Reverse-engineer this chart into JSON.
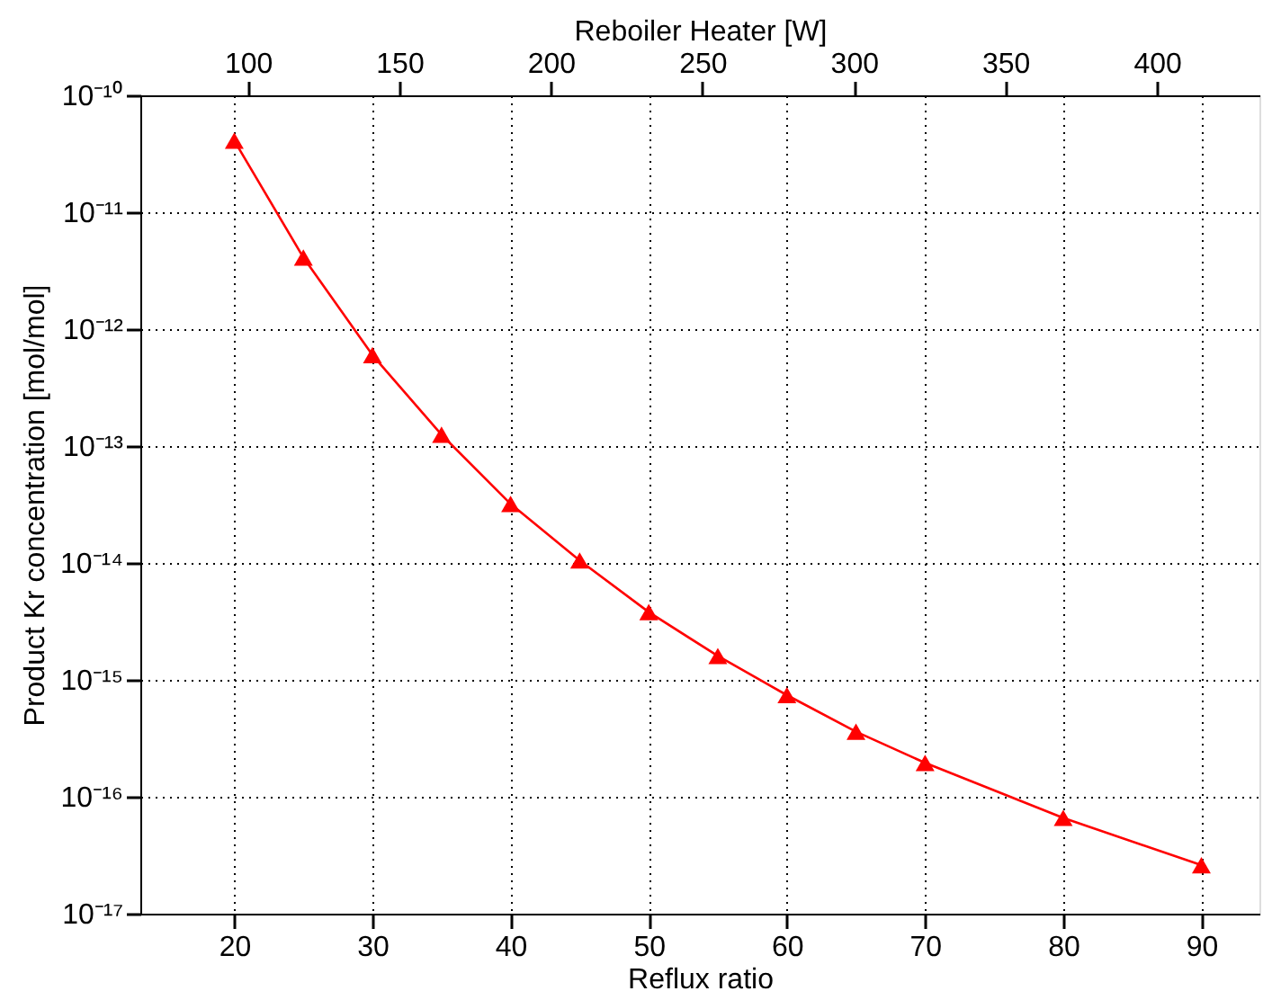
{
  "chart_data": {
    "type": "line",
    "xlabel": "Reflux ratio",
    "ylabel": "Product Kr concentration [mol/mol]",
    "x2label": "Reboiler Heater [W]",
    "x": [
      20,
      25,
      30,
      35,
      40,
      45,
      50,
      55,
      60,
      65,
      70,
      80,
      90
    ],
    "series": [
      {
        "color": "#ff0000",
        "values": [
          4.1e-11,
          4.1e-12,
          6e-13,
          1.25e-13,
          3.2e-14,
          1.05e-14,
          3.8e-15,
          1.6e-15,
          7.4e-16,
          3.6e-16,
          1.95e-16,
          6.6e-17,
          2.6e-17
        ]
      }
    ],
    "xlim": [
      13.2,
      94.2
    ],
    "xticks": [
      20,
      30,
      40,
      50,
      60,
      70,
      80,
      90
    ],
    "x2lim": [
      64.5,
      433.8
    ],
    "x2ticks": [
      100,
      150,
      200,
      250,
      300,
      350,
      400
    ],
    "ylim": [
      1e-17,
      1e-10
    ],
    "log": "y",
    "yticks": [
      {
        "value": 1e-17,
        "label": "10⁻¹⁷"
      },
      {
        "value": 1e-16,
        "label": "10⁻¹⁶"
      },
      {
        "value": 1e-15,
        "label": "10⁻¹⁵"
      },
      {
        "value": 1e-14,
        "label": "10⁻¹⁴"
      },
      {
        "value": 1e-13,
        "label": "10⁻¹³"
      },
      {
        "value": 1e-12,
        "label": "10⁻¹²"
      },
      {
        "value": 1e-11,
        "label": "10⁻¹¹"
      },
      {
        "value": 1e-10,
        "label": "10⁻¹⁰"
      }
    ],
    "grid": true,
    "marker": "triangle",
    "line_style": "solid"
  }
}
